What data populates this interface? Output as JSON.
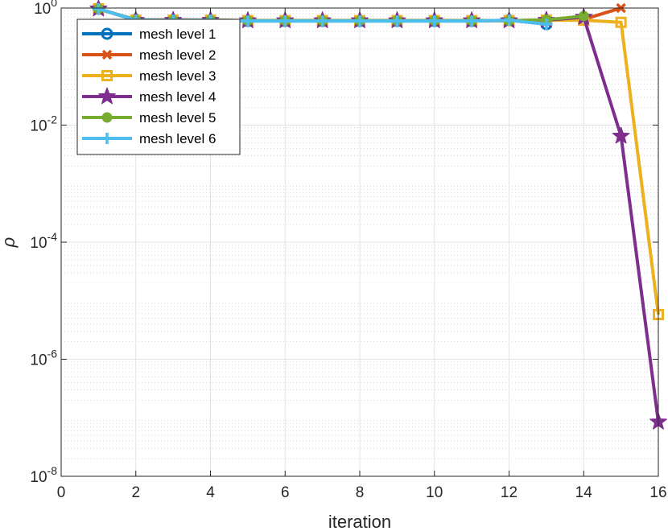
{
  "chart_data": {
    "type": "line",
    "title": "",
    "xlabel": "iteration",
    "ylabel": "ρ",
    "yscale": "log",
    "xlim": [
      0,
      16
    ],
    "ylim": [
      1e-08,
      1
    ],
    "x_ticks": [
      0,
      2,
      4,
      6,
      8,
      10,
      12,
      14,
      16
    ],
    "y_ticks": [
      {
        "value": 1e-08,
        "base": "10",
        "exp": "-8"
      },
      {
        "value": 1e-06,
        "base": "10",
        "exp": "-6"
      },
      {
        "value": 0.0001,
        "base": "10",
        "exp": "-4"
      },
      {
        "value": 0.01,
        "base": "10",
        "exp": "-2"
      },
      {
        "value": 1,
        "base": "10",
        "exp": "0"
      }
    ],
    "grid": true,
    "minor_grid": true,
    "legend_position": "top-left",
    "series": [
      {
        "name": "mesh level 1",
        "color": "#0072BD",
        "marker": "circle",
        "x": [
          1,
          2,
          3,
          4,
          5,
          6,
          7,
          8,
          9,
          10,
          11,
          12,
          13
        ],
        "y": [
          0.97,
          0.63,
          0.62,
          0.61,
          0.6,
          0.6,
          0.6,
          0.6,
          0.6,
          0.6,
          0.6,
          0.62,
          0.53
        ]
      },
      {
        "name": "mesh level 2",
        "color": "#D95319",
        "marker": "x",
        "x": [
          1,
          2,
          3,
          4,
          5,
          6,
          7,
          8,
          9,
          10,
          11,
          12,
          13,
          14,
          15
        ],
        "y": [
          0.97,
          0.62,
          0.63,
          0.62,
          0.61,
          0.61,
          0.61,
          0.61,
          0.61,
          0.61,
          0.61,
          0.61,
          0.62,
          0.64,
          1.0
        ]
      },
      {
        "name": "mesh level 3",
        "color": "#EDB120",
        "marker": "square",
        "x": [
          1,
          2,
          3,
          4,
          5,
          6,
          7,
          8,
          9,
          10,
          11,
          12,
          13,
          14,
          15,
          16
        ],
        "y": [
          0.97,
          0.62,
          0.62,
          0.62,
          0.61,
          0.61,
          0.61,
          0.61,
          0.61,
          0.61,
          0.61,
          0.61,
          0.62,
          0.62,
          0.57,
          5.8e-06
        ]
      },
      {
        "name": "mesh level 4",
        "color": "#7E2F8E",
        "marker": "star",
        "x": [
          1,
          2,
          3,
          4,
          5,
          6,
          7,
          8,
          9,
          10,
          11,
          12,
          13,
          14,
          15,
          16
        ],
        "y": [
          0.97,
          0.62,
          0.62,
          0.62,
          0.61,
          0.61,
          0.61,
          0.61,
          0.61,
          0.61,
          0.61,
          0.61,
          0.62,
          0.7,
          0.0065,
          8.5e-08
        ]
      },
      {
        "name": "mesh level 5",
        "color": "#77AC30",
        "marker": "dot",
        "x": [
          1,
          2,
          3,
          4,
          5,
          6,
          7,
          8,
          9,
          10,
          11,
          12,
          13,
          14
        ],
        "y": [
          0.97,
          0.62,
          0.62,
          0.62,
          0.61,
          0.61,
          0.61,
          0.61,
          0.61,
          0.61,
          0.61,
          0.61,
          0.63,
          0.73
        ]
      },
      {
        "name": "mesh level 6",
        "color": "#4DBEEE",
        "marker": "plus",
        "x": [
          1,
          2,
          3,
          4,
          5,
          6,
          7,
          8,
          9,
          10,
          11,
          12,
          13
        ],
        "y": [
          0.97,
          0.62,
          0.62,
          0.62,
          0.6,
          0.6,
          0.6,
          0.6,
          0.6,
          0.6,
          0.6,
          0.62,
          0.53
        ]
      }
    ]
  }
}
